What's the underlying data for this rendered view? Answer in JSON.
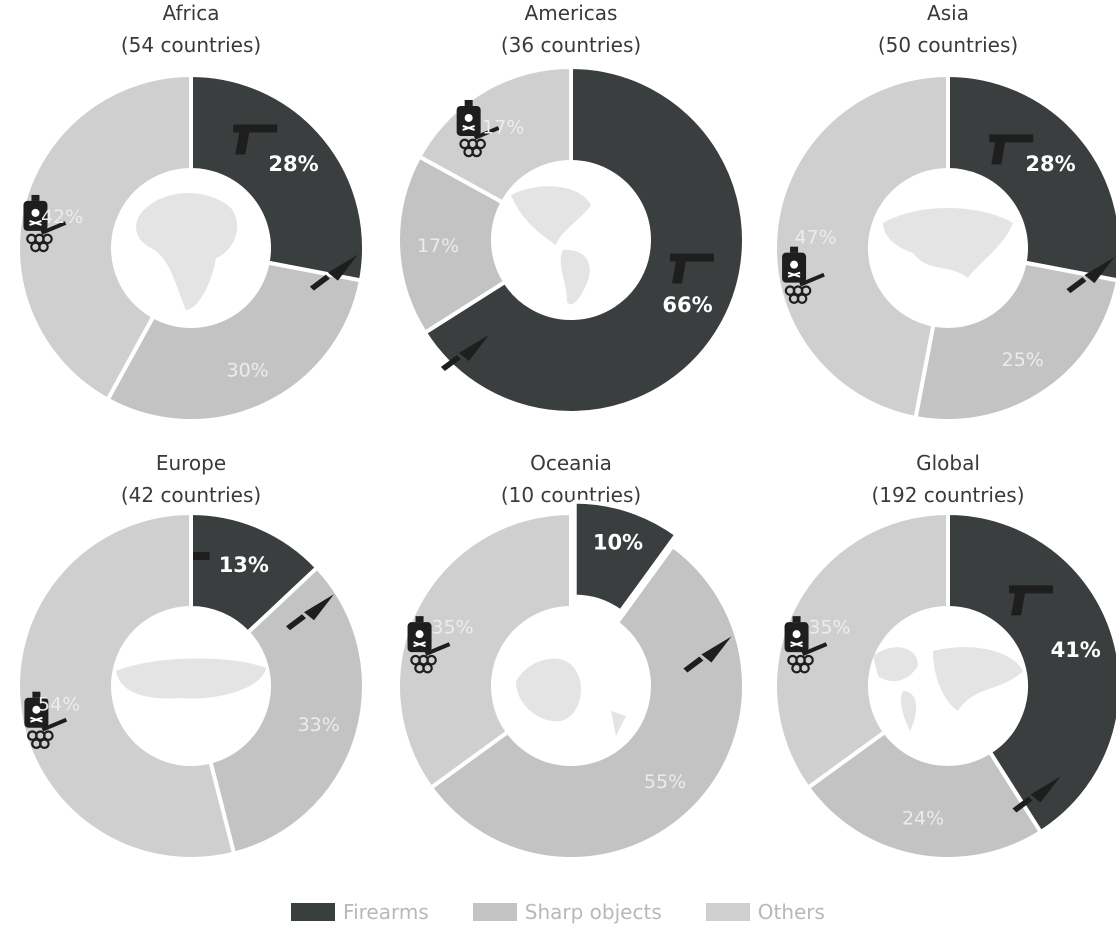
{
  "colors": {
    "firearms": "#3b3e3f",
    "sharp_objects": "#c3c3c3",
    "others": "#cfcfcf",
    "center": "#ffffff",
    "map": "#e4e4e4",
    "label_dark_slice": "#ffffff",
    "label_light_slice": "#ececec",
    "icon": "#1e1e1e"
  },
  "legend": [
    {
      "key": "firearms",
      "label": "Firearms"
    },
    {
      "key": "sharp_objects",
      "label": "Sharp objects"
    },
    {
      "key": "others",
      "label": "Others"
    }
  ],
  "chart_data": [
    {
      "type": "pie",
      "title": "Africa",
      "subtitle": "(54 countries)",
      "map_icon": "africa-map-icon",
      "slices": [
        {
          "category": "Firearms",
          "value": 28,
          "label": "28%",
          "icon": "pistol-icon"
        },
        {
          "category": "Sharp objects",
          "value": 30,
          "label": "30%",
          "icon": "knife-icon"
        },
        {
          "category": "Others",
          "value": 42,
          "label": "42%",
          "icon": "poison-knuckles-icon"
        }
      ]
    },
    {
      "type": "pie",
      "title": "Americas",
      "subtitle": "(36 countries)",
      "map_icon": "americas-map-icon",
      "slices": [
        {
          "category": "Firearms",
          "value": 66,
          "label": "66%",
          "icon": "pistol-icon"
        },
        {
          "category": "Sharp objects",
          "value": 17,
          "label": "17%",
          "icon": "knife-icon"
        },
        {
          "category": "Others",
          "value": 17,
          "label": "17%",
          "icon": "poison-knuckles-icon"
        }
      ]
    },
    {
      "type": "pie",
      "title": "Asia",
      "subtitle": "(50 countries)",
      "map_icon": "asia-map-icon",
      "slices": [
        {
          "category": "Firearms",
          "value": 28,
          "label": "28%",
          "icon": "pistol-icon"
        },
        {
          "category": "Sharp objects",
          "value": 25,
          "label": "25%",
          "icon": "knife-icon"
        },
        {
          "category": "Others",
          "value": 47,
          "label": "47%",
          "icon": "poison-knuckles-icon"
        }
      ]
    },
    {
      "type": "pie",
      "title": "Europe",
      "subtitle": "(42 countries)",
      "map_icon": "europe-map-icon",
      "slices": [
        {
          "category": "Firearms",
          "value": 13,
          "label": "13%",
          "icon": "pistol-icon"
        },
        {
          "category": "Sharp objects",
          "value": 33,
          "label": "33%",
          "icon": "knife-icon"
        },
        {
          "category": "Others",
          "value": 54,
          "label": "54%",
          "icon": "poison-knuckles-icon"
        }
      ]
    },
    {
      "type": "pie",
      "title": "Oceania",
      "subtitle": "(10 countries)",
      "map_icon": "oceania-map-icon",
      "slices": [
        {
          "category": "Firearms",
          "value": 10,
          "label": "10%"
        },
        {
          "category": "Sharp objects",
          "value": 55,
          "label": "55%",
          "icon": "knife-icon"
        },
        {
          "category": "Others",
          "value": 35,
          "label": "35%",
          "icon": "poison-knuckles-icon"
        }
      ]
    },
    {
      "type": "pie",
      "title": "Global",
      "subtitle": "(192 countries)",
      "map_icon": "world-map-icon",
      "slices": [
        {
          "category": "Firearms",
          "value": 41,
          "label": "41%",
          "icon": "pistol-icon"
        },
        {
          "category": "Sharp objects",
          "value": 24,
          "label": "24%",
          "icon": "knife-icon"
        },
        {
          "category": "Others",
          "value": 35,
          "label": "35%",
          "icon": "poison-knuckles-icon"
        }
      ]
    }
  ]
}
